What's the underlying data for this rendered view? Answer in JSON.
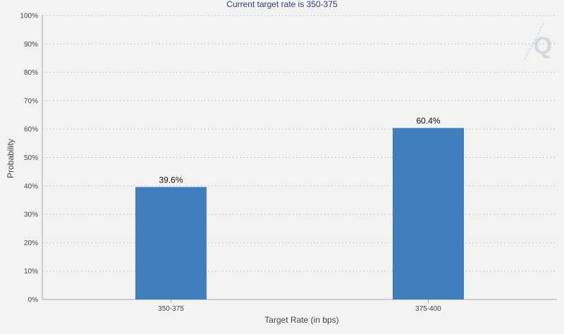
{
  "chart_data": {
    "type": "bar",
    "title": "",
    "subtitle": "Current target rate is 350-375",
    "xlabel": "Target Rate (in bps)",
    "ylabel": "Probability",
    "categories": [
      "350-375",
      "375-400"
    ],
    "values": [
      39.6,
      60.4
    ],
    "data_labels": [
      "39.6%",
      "60.4%"
    ],
    "ylim": [
      0,
      100
    ],
    "y_ticks": [
      0,
      10,
      20,
      30,
      40,
      50,
      60,
      70,
      80,
      90,
      100
    ],
    "y_tick_labels": [
      "0%",
      "10%",
      "20%",
      "30%",
      "40%",
      "50%",
      "60%",
      "70%",
      "80%",
      "90%",
      "100%"
    ],
    "grid": true,
    "legend": "none"
  },
  "colors": {
    "bar": "#3f7dbf",
    "background": "#f3f3f3",
    "watermark": "#cfe3ee"
  },
  "watermark_icon": "q-logo-icon",
  "watermark_text": "Q"
}
